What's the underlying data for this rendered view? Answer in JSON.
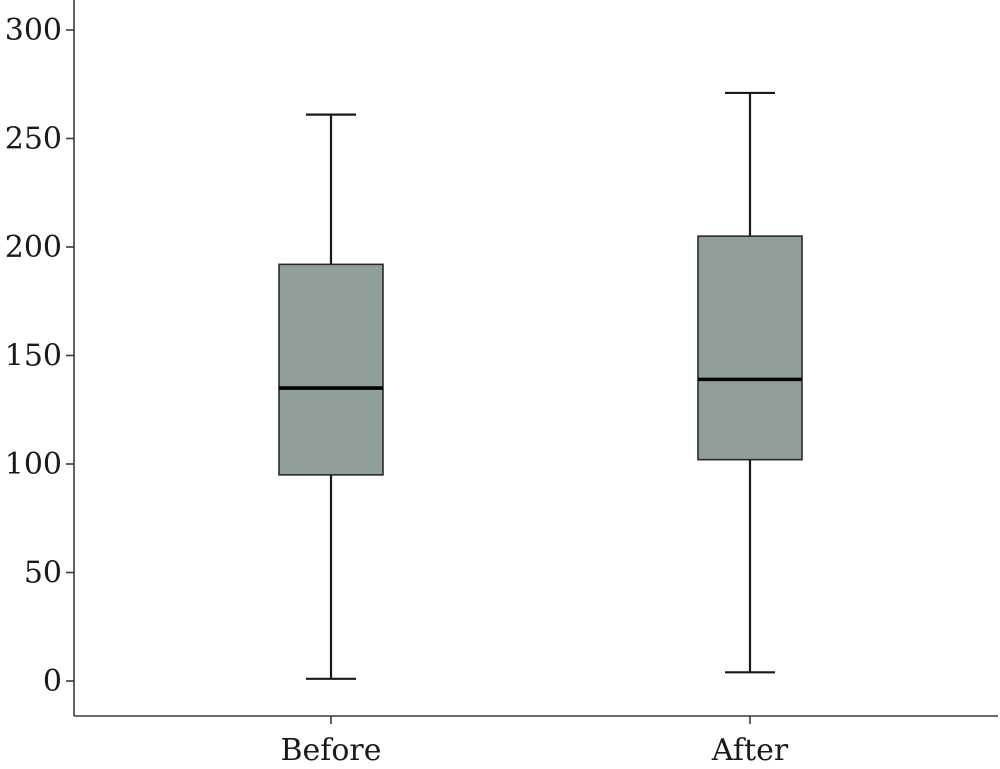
{
  "chart_data": {
    "type": "boxplot",
    "title": "",
    "xlabel": "",
    "ylabel": "",
    "ylim": [
      -15,
      315
    ],
    "yticks": [
      0,
      50,
      100,
      150,
      200,
      250,
      300
    ],
    "box_color": "#909f9b",
    "categories": [
      "Before",
      "After"
    ],
    "boxes": [
      {
        "label": "Before",
        "min": 1,
        "q1": 95,
        "median": 135,
        "q3": 192,
        "max": 261
      },
      {
        "label": "After",
        "min": 4,
        "q1": 102,
        "median": 139,
        "q3": 205,
        "max": 271
      }
    ]
  }
}
